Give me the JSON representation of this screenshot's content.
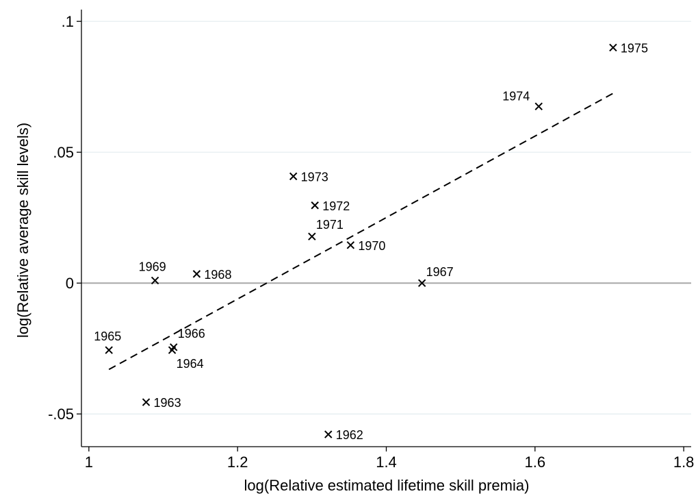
{
  "chart_data": {
    "type": "scatter",
    "title": "",
    "xlabel": "log(Relative estimated lifetime skill premia)",
    "ylabel": "log(Relative average skill levels)",
    "xlim": [
      0.99,
      1.81
    ],
    "ylim": [
      -0.0625,
      0.1045
    ],
    "xticks": [
      {
        "value": 1.0,
        "label": "1"
      },
      {
        "value": 1.2,
        "label": "1.2"
      },
      {
        "value": 1.4,
        "label": "1.4"
      },
      {
        "value": 1.6,
        "label": "1.6"
      },
      {
        "value": 1.8,
        "label": "1.8"
      }
    ],
    "yticks": [
      {
        "value": -0.05,
        "label": "-.05"
      },
      {
        "value": 0.0,
        "label": "0"
      },
      {
        "value": 0.05,
        "label": ".05"
      },
      {
        "value": 0.1,
        "label": ".1"
      }
    ],
    "grid": "horizontal",
    "zero_line": 0,
    "points": [
      {
        "label": "1962",
        "x": 1.322,
        "y": -0.0578
      },
      {
        "label": "1963",
        "x": 1.077,
        "y": -0.0455
      },
      {
        "label": "1964",
        "x": 1.112,
        "y": -0.0256
      },
      {
        "label": "1965",
        "x": 1.027,
        "y": -0.0256
      },
      {
        "label": "1966",
        "x": 1.114,
        "y": -0.0245
      },
      {
        "label": "1967",
        "x": 1.448,
        "y": 0.0
      },
      {
        "label": "1968",
        "x": 1.145,
        "y": 0.0035
      },
      {
        "label": "1969",
        "x": 1.089,
        "y": 0.001
      },
      {
        "label": "1970",
        "x": 1.352,
        "y": 0.0145
      },
      {
        "label": "1971",
        "x": 1.3,
        "y": 0.0178
      },
      {
        "label": "1972",
        "x": 1.304,
        "y": 0.0297
      },
      {
        "label": "1973",
        "x": 1.275,
        "y": 0.0408
      },
      {
        "label": "1974",
        "x": 1.605,
        "y": 0.0675
      },
      {
        "label": "1975",
        "x": 1.705,
        "y": 0.09
      }
    ],
    "fit_line": {
      "style": "dashed",
      "x": [
        1.027,
        1.705
      ],
      "y": [
        -0.033,
        0.0725
      ]
    }
  }
}
